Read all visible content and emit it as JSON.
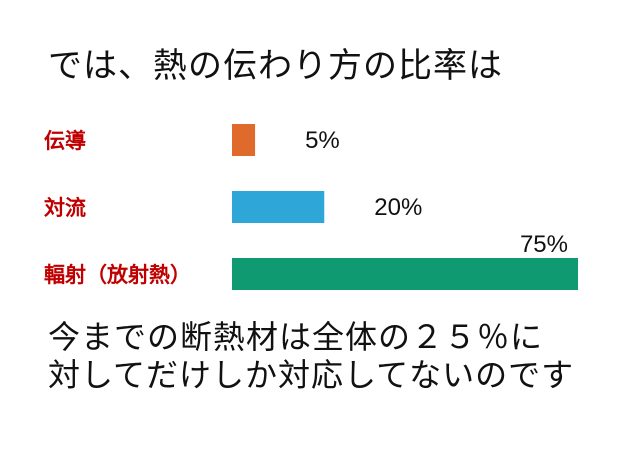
{
  "title": "では、熱の伝わり方の比率は",
  "chart_data": {
    "type": "bar",
    "orientation": "horizontal",
    "categories": [
      "伝導",
      "対流",
      "輻射（放射熱）"
    ],
    "values": [
      5,
      20,
      75
    ],
    "value_labels": [
      "5%",
      "20%",
      "75%"
    ],
    "colors": [
      "#e06a2c",
      "#2ea7d8",
      "#0f9a72"
    ],
    "xlim": [
      0,
      75
    ],
    "grid": false
  },
  "footer": {
    "line1": "今までの断熱材は全体の２５％に",
    "line2": "対してだけしか対応してないのです"
  }
}
